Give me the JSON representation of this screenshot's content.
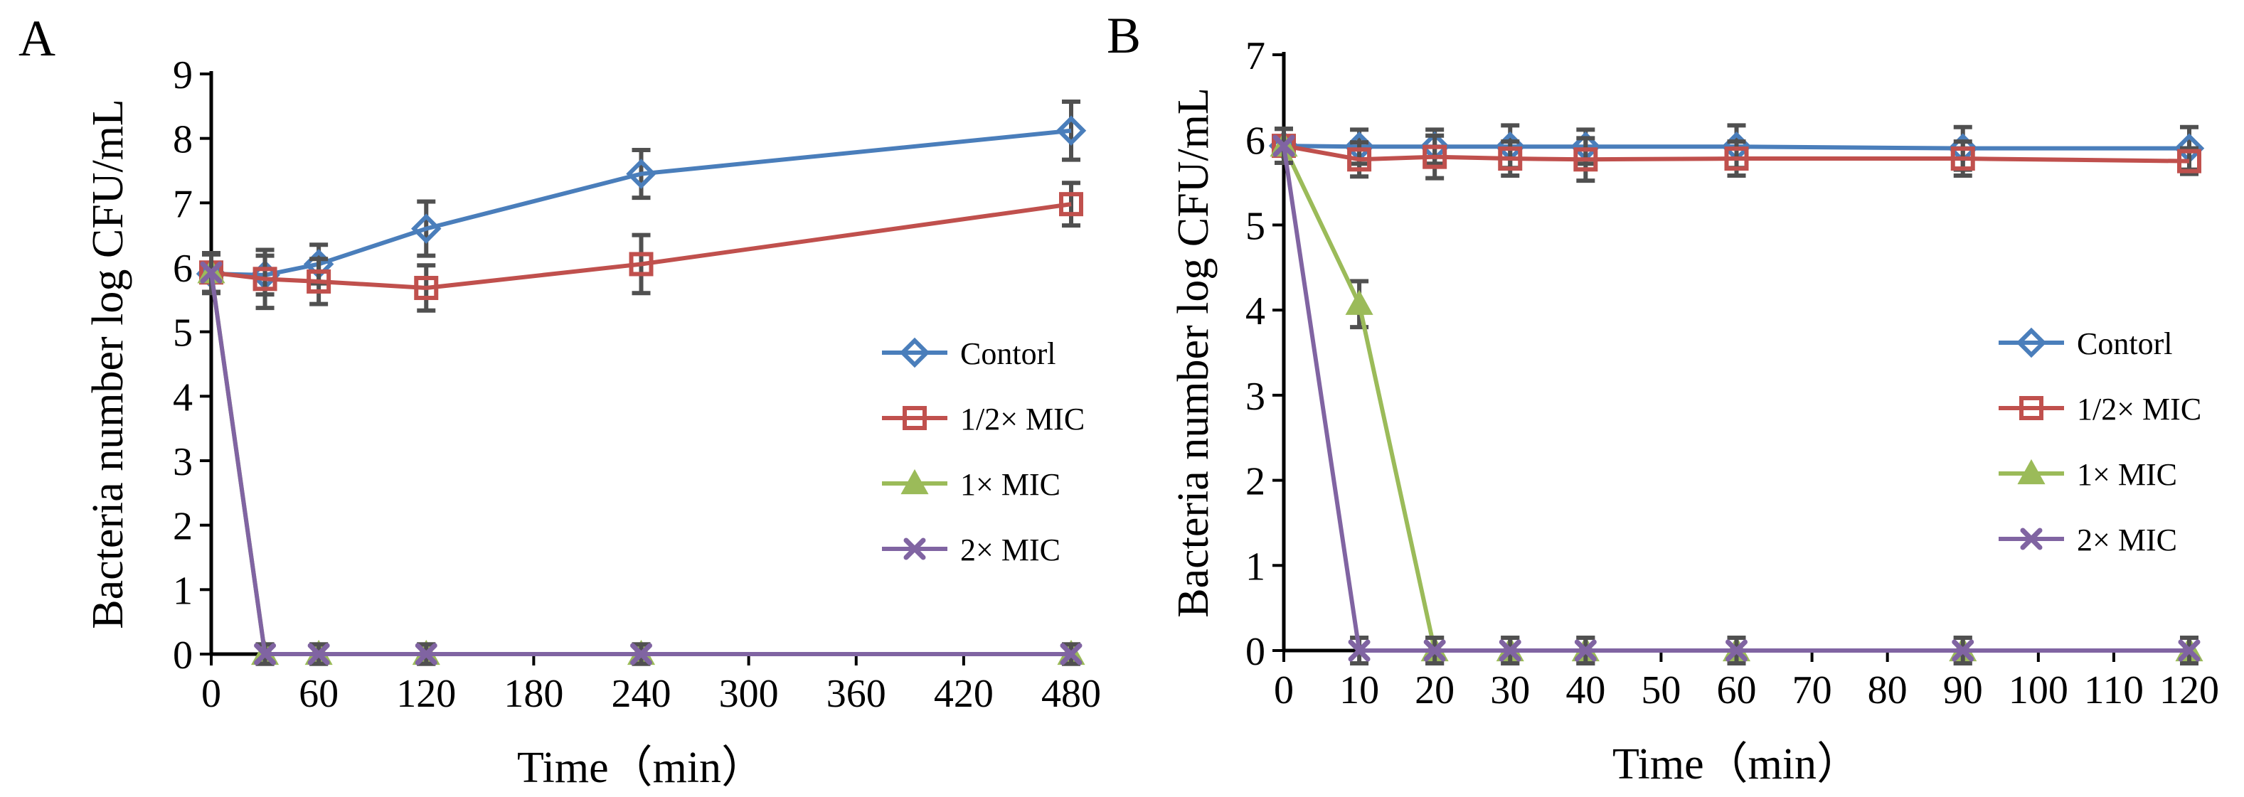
{
  "colors": {
    "control": "#4a7ebb",
    "half": "#c0504d",
    "one": "#9bbb59",
    "two": "#8064a2",
    "errbar": "#505050"
  },
  "series_names": [
    "Contorl",
    "1/2× MIC",
    "1× MIC",
    "2× MIC"
  ],
  "chart_data": [
    {
      "type": "line",
      "panel": "A",
      "xlabel": "Time（min）",
      "ylabel": "Bacteria number log CFU/mL",
      "xlim": [
        0,
        480
      ],
      "ylim": [
        0,
        9
      ],
      "xticks": [
        0,
        60,
        120,
        180,
        240,
        300,
        360,
        420,
        480
      ],
      "yticks": [
        0,
        1,
        2,
        3,
        4,
        5,
        6,
        7,
        8,
        9
      ],
      "legend_position": "center-right",
      "series": [
        {
          "name": "Contorl",
          "marker": "diamond",
          "x": [
            0,
            30,
            60,
            120,
            240,
            480
          ],
          "y": [
            5.9,
            5.88,
            6.05,
            6.6,
            7.45,
            8.12
          ],
          "err": [
            0.3,
            0.3,
            0.3,
            0.42,
            0.37,
            0.45
          ]
        },
        {
          "name": "1/2× MIC",
          "marker": "square",
          "x": [
            0,
            30,
            60,
            120,
            240,
            480
          ],
          "y": [
            5.92,
            5.82,
            5.78,
            5.68,
            6.05,
            6.98
          ],
          "err": [
            0.3,
            0.45,
            0.35,
            0.35,
            0.45,
            0.33
          ]
        },
        {
          "name": "1× MIC",
          "marker": "triangle",
          "x": [
            0,
            30,
            60,
            120,
            240,
            480
          ],
          "y": [
            5.92,
            0,
            0,
            0,
            0,
            0
          ],
          "err": [
            0.3,
            0.15,
            0.15,
            0.15,
            0.15,
            0.15
          ]
        },
        {
          "name": "2× MIC",
          "marker": "x",
          "x": [
            0,
            30,
            60,
            120,
            240,
            480
          ],
          "y": [
            5.92,
            0,
            0,
            0,
            0,
            0
          ],
          "err": [
            0.3,
            0.15,
            0.15,
            0.15,
            0.15,
            0.15
          ]
        }
      ]
    },
    {
      "type": "line",
      "panel": "B",
      "xlabel": "Time（min）",
      "ylabel": "Bacteria number log CFU/mL",
      "xlim": [
        0,
        120
      ],
      "ylim": [
        0,
        7
      ],
      "xticks": [
        0,
        10,
        20,
        30,
        40,
        50,
        60,
        70,
        80,
        90,
        100,
        110,
        120
      ],
      "xtick_labels": [
        "0",
        "10",
        "20",
        "30",
        "40",
        "50",
        "60",
        "70",
        "80",
        "90",
        "100",
        "110",
        "120"
      ],
      "yticks": [
        0,
        1,
        2,
        3,
        4,
        5,
        6,
        7
      ],
      "legend_position": "center-right",
      "series": [
        {
          "name": "Contorl",
          "marker": "diamond",
          "x": [
            0,
            10,
            20,
            30,
            40,
            60,
            90,
            120
          ],
          "y": [
            5.93,
            5.92,
            5.92,
            5.92,
            5.92,
            5.92,
            5.9,
            5.9
          ],
          "err": [
            0.2,
            0.2,
            0.2,
            0.25,
            0.2,
            0.25,
            0.25,
            0.25
          ]
        },
        {
          "name": "1/2× MIC",
          "marker": "square",
          "x": [
            0,
            10,
            20,
            30,
            40,
            60,
            90,
            120
          ],
          "y": [
            5.93,
            5.77,
            5.8,
            5.78,
            5.77,
            5.78,
            5.78,
            5.75
          ],
          "err": [
            0.2,
            0.2,
            0.25,
            0.2,
            0.25,
            0.2,
            0.2,
            0.15
          ]
        },
        {
          "name": "1× MIC",
          "marker": "triangle",
          "x": [
            0,
            10,
            20,
            30,
            40,
            60,
            90,
            120
          ],
          "y": [
            5.93,
            4.07,
            0,
            0,
            0,
            0,
            0,
            0
          ],
          "err": [
            0.2,
            0.27,
            0.15,
            0.15,
            0.15,
            0.15,
            0.15,
            0.15
          ]
        },
        {
          "name": "2× MIC",
          "marker": "x",
          "x": [
            0,
            10,
            20,
            30,
            40,
            60,
            90,
            120
          ],
          "y": [
            5.93,
            0,
            0,
            0,
            0,
            0,
            0,
            0
          ],
          "err": [
            0.2,
            0.15,
            0.15,
            0.15,
            0.15,
            0.15,
            0.15,
            0.15
          ]
        }
      ]
    }
  ]
}
